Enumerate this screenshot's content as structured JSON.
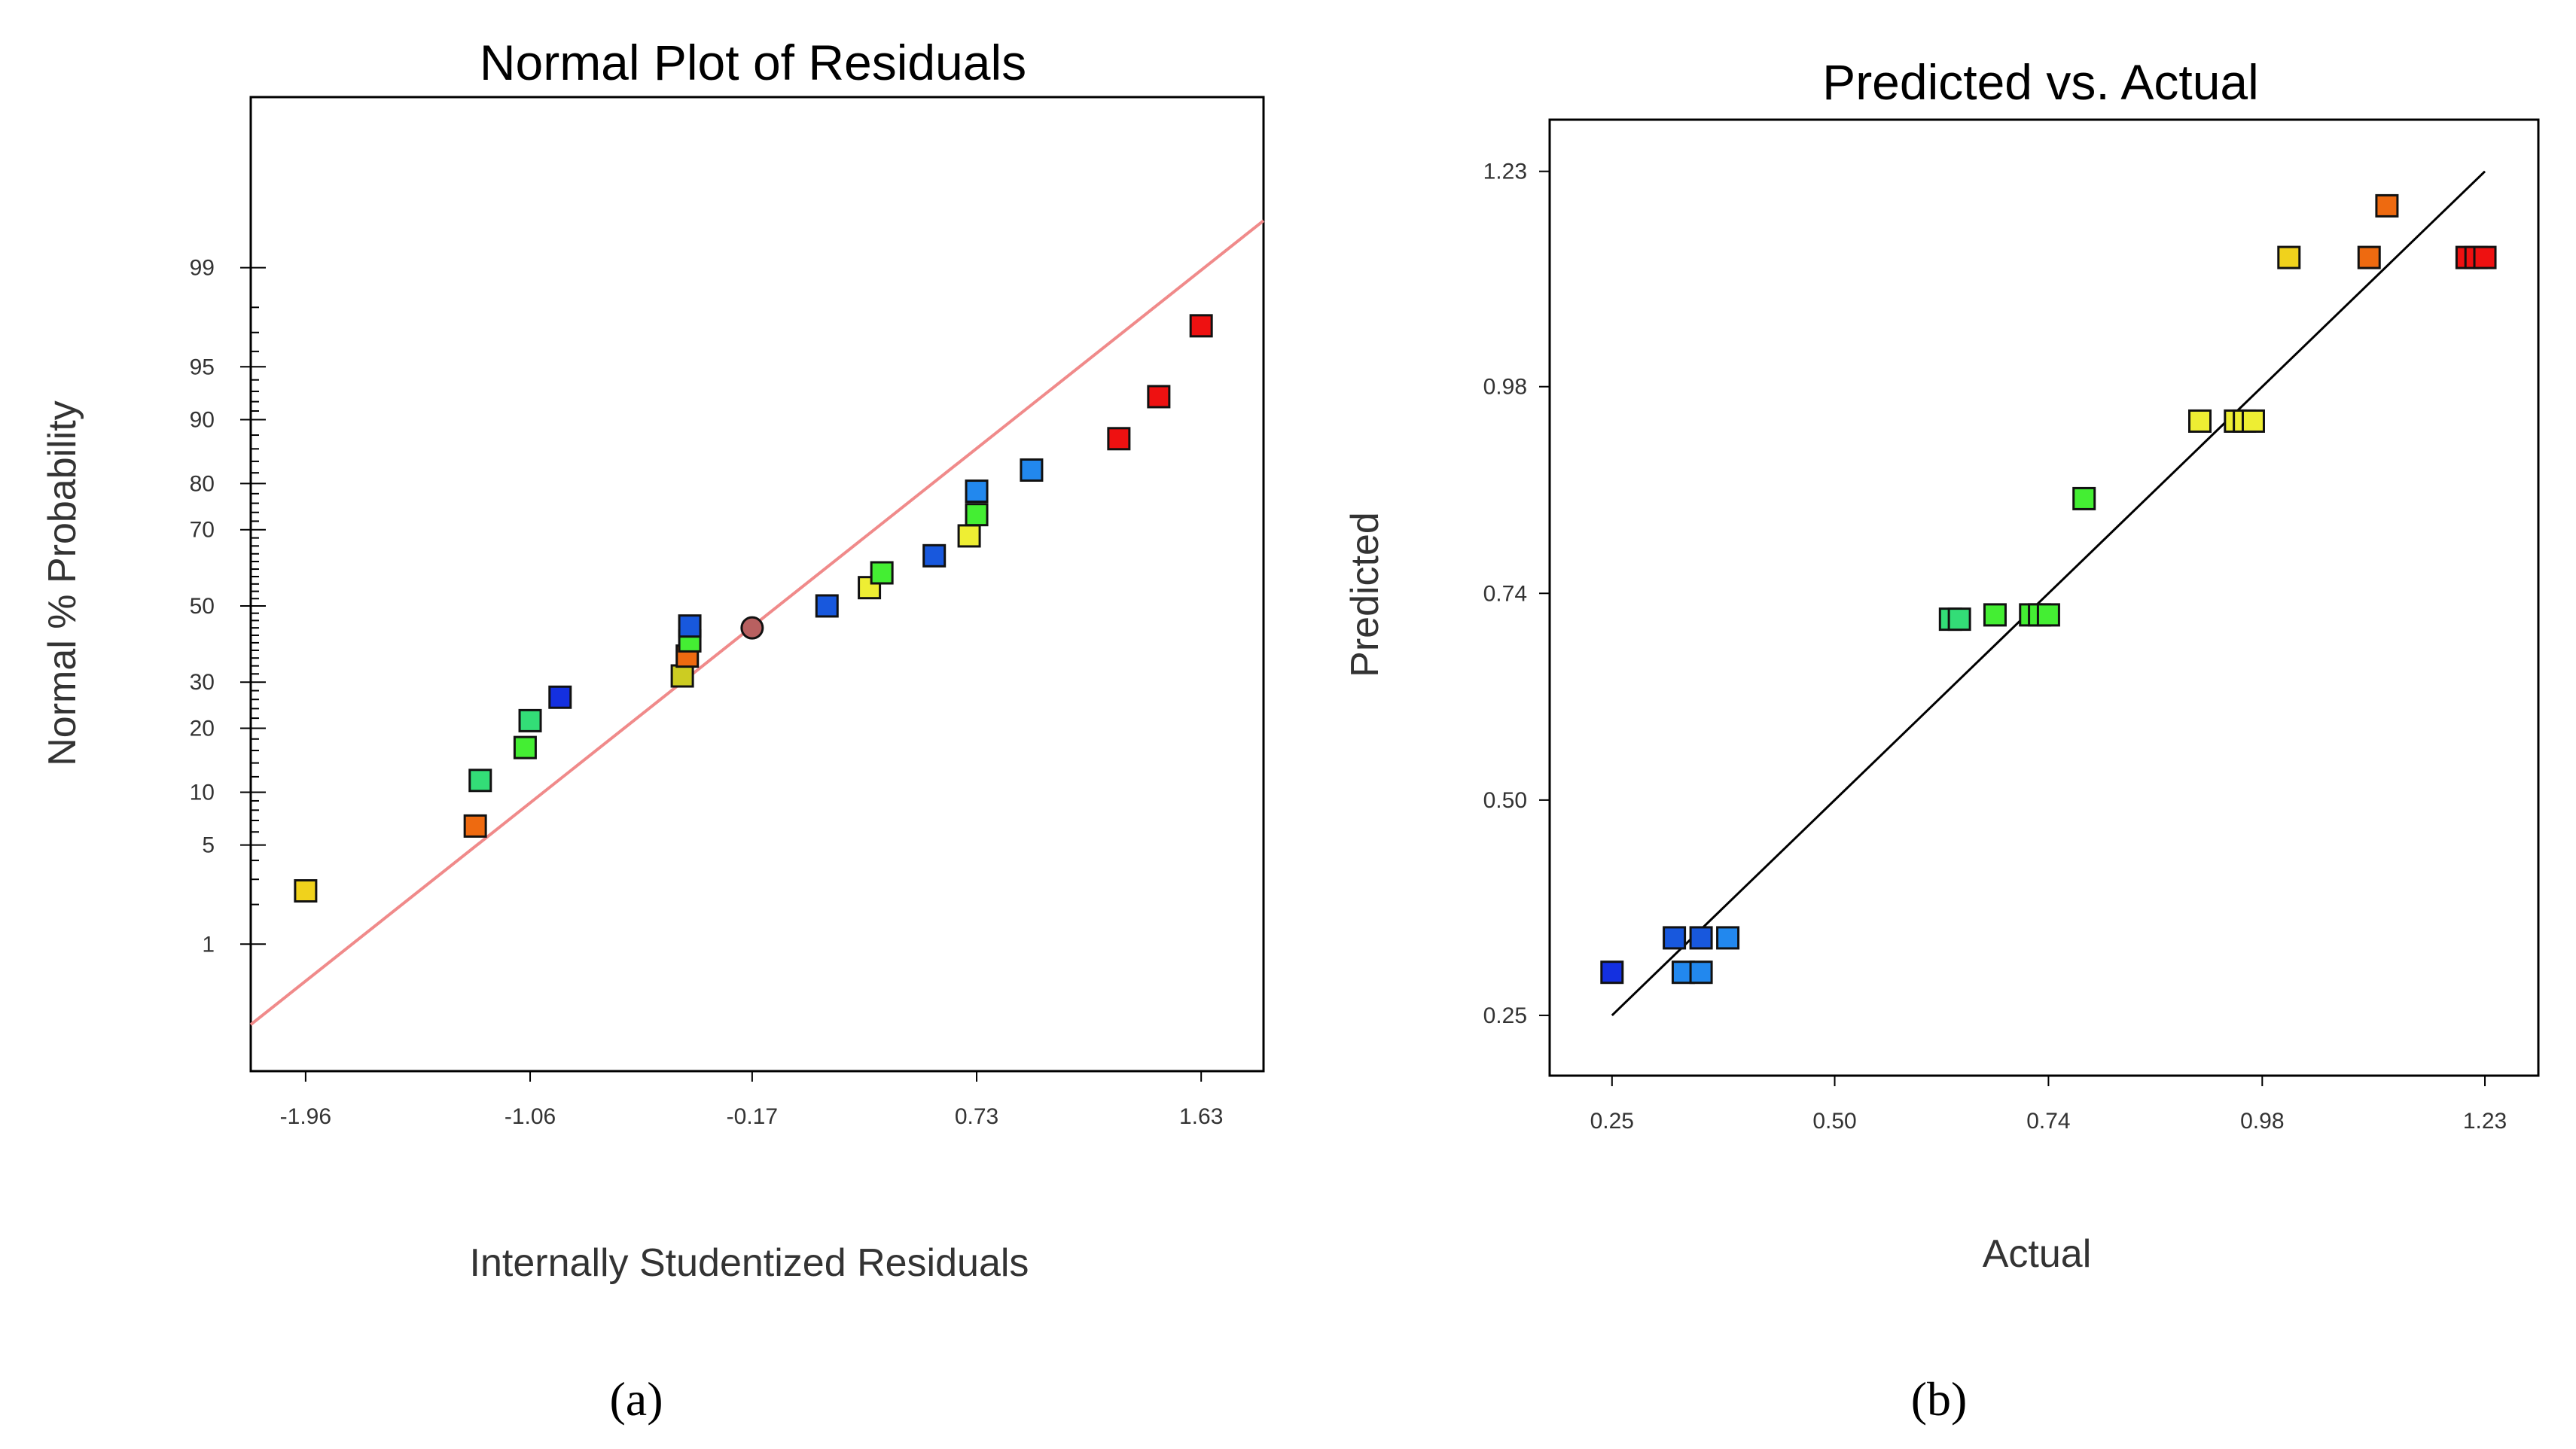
{
  "chart_data": [
    {
      "type": "scatter",
      "panel_label": "(a)",
      "title": "Normal Plot of Residuals",
      "xlabel": "Internally Studentized Residuals",
      "ylabel": "Normal % Probability",
      "x_ticks": [
        "-1.96",
        "-1.06",
        "-0.17",
        "0.73",
        "1.63"
      ],
      "x_tick_values": [
        -1.96,
        -1.06,
        -0.17,
        0.73,
        1.63
      ],
      "y_ticks": [
        "1",
        "5",
        "10",
        "20",
        "30",
        "50",
        "70",
        "80",
        "90",
        "95",
        "99"
      ],
      "y_tick_values": [
        1,
        5,
        10,
        20,
        30,
        50,
        70,
        80,
        90,
        95,
        99
      ],
      "xlim": [
        -2.18,
        1.88
      ],
      "ylim_probit_z": [
        -3.2,
        3.5
      ],
      "fit_line": {
        "color": "#f08a8a",
        "x": [
          -2.18,
          1.88
        ],
        "y_z": [
          -2.88,
          2.65
        ]
      },
      "points": [
        {
          "x": -1.96,
          "y": 2.5,
          "color": "#f0d21c"
        },
        {
          "x": -1.28,
          "y": 6.5,
          "color": "#ee6a10"
        },
        {
          "x": -1.26,
          "y": 11.5,
          "color": "#33dd77"
        },
        {
          "x": -1.08,
          "y": 16.5,
          "color": "#44ee33"
        },
        {
          "x": -1.06,
          "y": 21.5,
          "color": "#33dd77"
        },
        {
          "x": -0.94,
          "y": 26.5,
          "color": "#1430e0"
        },
        {
          "x": -0.45,
          "y": 31.5,
          "color": "#cccc22"
        },
        {
          "x": -0.43,
          "y": 36.5,
          "color": "#ee6a10"
        },
        {
          "x": -0.42,
          "y": 40.5,
          "color": "#44ee33"
        },
        {
          "x": -0.42,
          "y": 44.5,
          "color": "#1858dd"
        },
        {
          "x": -0.17,
          "y": 44.0,
          "color": "#b86060",
          "shape": "circle"
        },
        {
          "x": 0.13,
          "y": 50.0,
          "color": "#1858dd"
        },
        {
          "x": 0.3,
          "y": 55.0,
          "color": "#eeee33"
        },
        {
          "x": 0.35,
          "y": 59.0,
          "color": "#44ee33"
        },
        {
          "x": 0.56,
          "y": 63.5,
          "color": "#1858dd"
        },
        {
          "x": 0.7,
          "y": 68.5,
          "color": "#eeee33"
        },
        {
          "x": 0.73,
          "y": 73.5,
          "color": "#44ee33"
        },
        {
          "x": 0.73,
          "y": 78.5,
          "color": "#2288ee"
        },
        {
          "x": 0.95,
          "y": 82.5,
          "color": "#2288ee"
        },
        {
          "x": 1.3,
          "y": 87.5,
          "color": "#ee1111"
        },
        {
          "x": 1.46,
          "y": 92.5,
          "color": "#ee1111"
        },
        {
          "x": 1.63,
          "y": 97.3,
          "color": "#ee1111"
        }
      ]
    },
    {
      "type": "scatter",
      "panel_label": "(b)",
      "title": "Predicted vs. Actual",
      "xlabel": "Actual",
      "ylabel": "Predicted",
      "x_ticks": [
        "0.25",
        "0.50",
        "0.74",
        "0.98",
        "1.23"
      ],
      "x_tick_values": [
        0.25,
        0.5,
        0.74,
        0.98,
        1.23
      ],
      "y_ticks": [
        "0.25",
        "0.50",
        "0.74",
        "0.98",
        "1.23"
      ],
      "y_tick_values": [
        0.25,
        0.5,
        0.74,
        0.98,
        1.23
      ],
      "xlim": [
        0.18,
        1.29
      ],
      "ylim": [
        0.18,
        1.29
      ],
      "fit_line": {
        "color": "#000000",
        "x": [
          0.25,
          1.23
        ],
        "y": [
          0.25,
          1.23
        ]
      },
      "points": [
        {
          "x": 0.25,
          "y": 0.3,
          "color": "#1430e0"
        },
        {
          "x": 0.32,
          "y": 0.34,
          "color": "#1858dd"
        },
        {
          "x": 0.33,
          "y": 0.3,
          "color": "#2288ee"
        },
        {
          "x": 0.35,
          "y": 0.3,
          "color": "#2288ee"
        },
        {
          "x": 0.35,
          "y": 0.34,
          "color": "#1858dd"
        },
        {
          "x": 0.38,
          "y": 0.34,
          "color": "#2288ee"
        },
        {
          "x": 0.63,
          "y": 0.71,
          "color": "#33dd77"
        },
        {
          "x": 0.64,
          "y": 0.71,
          "color": "#33dd77"
        },
        {
          "x": 0.68,
          "y": 0.715,
          "color": "#44ee33"
        },
        {
          "x": 0.72,
          "y": 0.715,
          "color": "#44ee33"
        },
        {
          "x": 0.73,
          "y": 0.715,
          "color": "#44ee33"
        },
        {
          "x": 0.74,
          "y": 0.715,
          "color": "#44ee33"
        },
        {
          "x": 0.78,
          "y": 0.85,
          "color": "#44ee33"
        },
        {
          "x": 0.91,
          "y": 0.94,
          "color": "#eeee33"
        },
        {
          "x": 0.95,
          "y": 0.94,
          "color": "#eeee33"
        },
        {
          "x": 0.96,
          "y": 0.94,
          "color": "#eeee33"
        },
        {
          "x": 0.97,
          "y": 0.94,
          "color": "#eeee33"
        },
        {
          "x": 1.01,
          "y": 1.13,
          "color": "#f0d21c"
        },
        {
          "x": 1.1,
          "y": 1.13,
          "color": "#ee6a10"
        },
        {
          "x": 1.12,
          "y": 1.19,
          "color": "#ee6a10"
        },
        {
          "x": 1.21,
          "y": 1.13,
          "color": "#ee1111"
        },
        {
          "x": 1.22,
          "y": 1.13,
          "color": "#ee1111"
        },
        {
          "x": 1.23,
          "y": 1.13,
          "color": "#ee1111"
        }
      ]
    }
  ]
}
